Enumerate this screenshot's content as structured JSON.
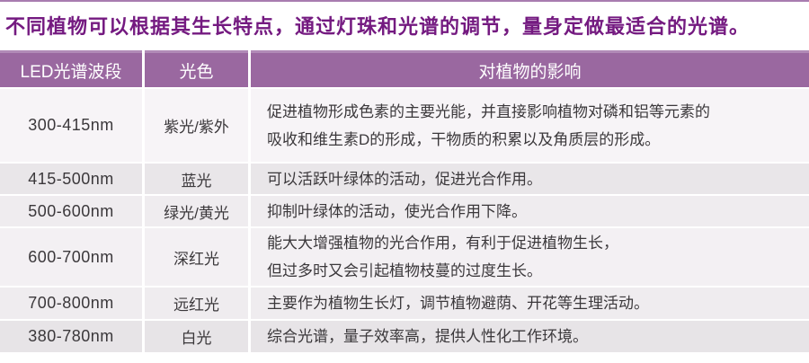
{
  "page": {
    "title": "不同植物可以根据其生长特点，通过灯珠和光谱的调节，量身定做最适合的光谱。"
  },
  "colors": {
    "top_line": "#a87cb0",
    "title_text": "#741a80",
    "header_bg": "#9a68a0",
    "header_top_edge": "#b18ab7",
    "header_text": "#ffffff",
    "body_text": "#3b383b"
  },
  "table": {
    "headers": [
      "LED光谱波段",
      "光色",
      "对植物的影响"
    ],
    "rows": [
      {
        "band": "300-415nm",
        "light_color": "紫光/紫外",
        "effect": "促进植物形成色素的主要光能，并直接影响植物对磷和铝等元素的\n吸收和维生素D的形成，干物质的积累以及角质层的形成。",
        "bg": "#f7f4f7"
      },
      {
        "band": "415-500nm",
        "light_color": "蓝光",
        "effect": "可以活跃叶绿体的活动，促进光合作用。",
        "bg": "#e9e6e9"
      },
      {
        "band": "500-600nm",
        "light_color": "绿光/黄光",
        "effect": "抑制叶绿体的活动，使光合作用下降。",
        "bg": "#efecef"
      },
      {
        "band": "600-700nm",
        "light_color": "深红光",
        "effect": "能大大增强植物的光合作用，有利于促进植物生长，\n但过多时又会引起植物枝蔓的过度生长。",
        "bg": "#f3f0f3"
      },
      {
        "band": "700-800nm",
        "light_color": "远红光",
        "effect": "主要作为植物生长灯，调节植物避荫、开花等生理活动。",
        "bg": "#efecef"
      },
      {
        "band": "380-780nm",
        "light_color": "白光",
        "effect": "综合光谱，量子效率高，提供人性化工作环境。",
        "bg": "#e7e4e7"
      }
    ]
  }
}
